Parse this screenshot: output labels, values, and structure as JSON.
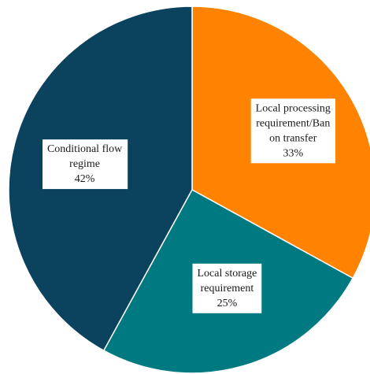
{
  "chart_data": {
    "type": "pie",
    "slices": [
      {
        "category_lines": [
          "Local processing",
          "requirement/Ban",
          "on transfer"
        ],
        "value": 33,
        "value_label": "33%",
        "color": "#ff8200"
      },
      {
        "category_lines": [
          "Local storage",
          "requirement"
        ],
        "value": 25,
        "value_label": "25%",
        "color": "#007a80"
      },
      {
        "category_lines": [
          "Conditional flow",
          "regime"
        ],
        "value": 42,
        "value_label": "42%",
        "color": "#0b425e"
      }
    ],
    "start_angle_deg": 0,
    "direction": "clockwise",
    "legend": "none"
  }
}
